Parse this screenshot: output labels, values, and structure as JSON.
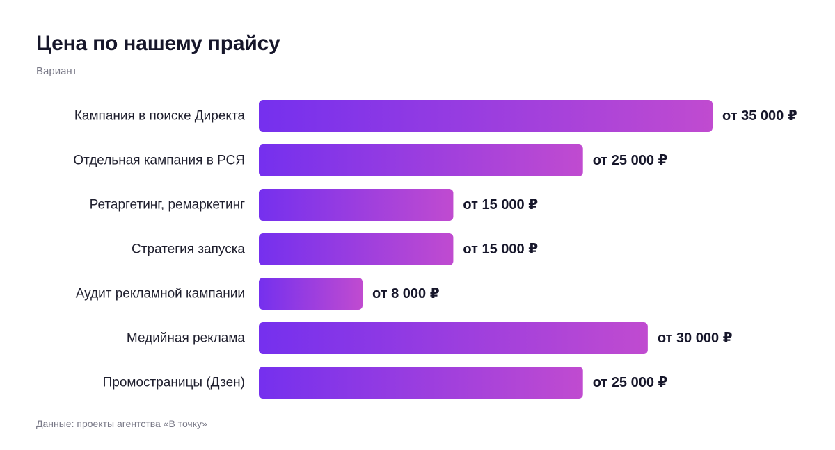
{
  "header": {
    "title": "Цена по нашему прайсу",
    "subtitle": "Вариант"
  },
  "footer": {
    "source": "Данные: проекты агентства «В точку»"
  },
  "colors": {
    "bar_gradient_start": "#7530ee",
    "bar_gradient_end": "#c04bd0"
  },
  "chart_data": {
    "type": "bar",
    "orientation": "horizontal",
    "title": "Цена по нашему прайсу",
    "subtitle": "Вариант",
    "categories": [
      "Кампания в поиске Директа",
      "Отдельная кампания в РСЯ",
      "Ретаргетинг, ремаркетинг",
      "Стратегия запуска",
      "Аудит рекламной кампании",
      "Медийная реклама",
      "Промостраницы (Дзен)"
    ],
    "values": [
      35000,
      25000,
      15000,
      15000,
      8000,
      30000,
      25000
    ],
    "value_labels": [
      "от 35 000 ₽",
      "от 25 000 ₽",
      "от 15 000 ₽",
      "от 15 000 ₽",
      "от 8 000 ₽",
      "от 30 000 ₽",
      "от 25 000 ₽"
    ],
    "xlim": [
      0,
      35000
    ],
    "grid": false,
    "legend": "none"
  }
}
